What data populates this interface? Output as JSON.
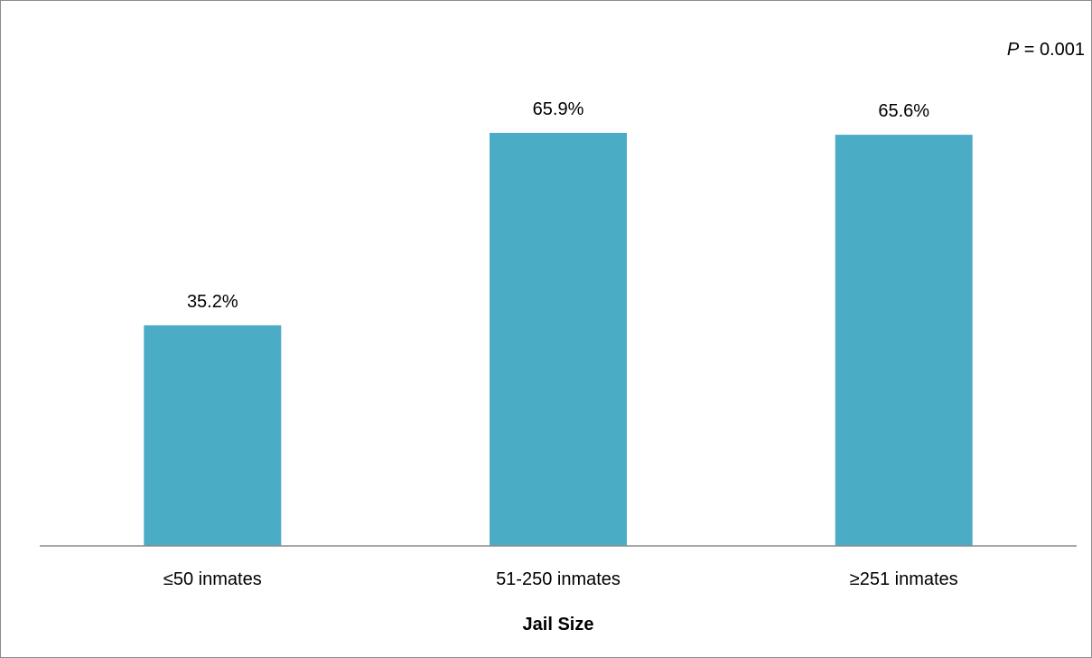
{
  "chart_data": {
    "type": "bar",
    "categories": [
      "≤50 inmates",
      "51-250 inmates",
      "≥251 inmates"
    ],
    "values": [
      35.2,
      65.9,
      65.6
    ],
    "data_labels": [
      "35.2%",
      "65.9%",
      "65.6%"
    ],
    "title": "",
    "xlabel": "Jail Size",
    "ylabel": "",
    "ylim": [
      0,
      70
    ],
    "grid": false,
    "legend": "none",
    "bar_color": "#4BACC6",
    "annotation": {
      "italic_part": "P",
      "rest": " = 0.001"
    }
  }
}
